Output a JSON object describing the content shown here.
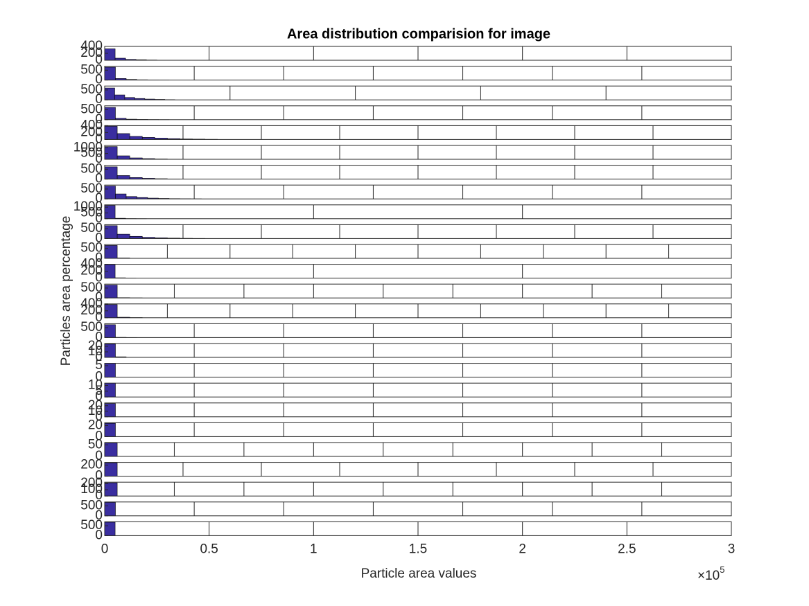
{
  "figure": {
    "title": "Area distribution comparision for image",
    "xlabel": "Particle area values",
    "ylabel": "Particles area percentage",
    "x_multiplier": "×10",
    "x_multiplier_exponent": "5"
  },
  "chart_data": [
    {
      "type": "histogram",
      "color": "#3a2ea0",
      "xlim": [
        0,
        3
      ],
      "xticks": [
        0,
        0.5,
        1,
        1.5,
        2,
        2.5,
        3
      ],
      "ylim": [
        0,
        400
      ],
      "yticks": [
        0,
        200,
        400
      ],
      "bins": [
        0,
        0.05,
        0.1,
        0.15,
        0.2,
        0.25,
        0.3
      ],
      "counts": [
        330,
        60,
        25,
        15,
        8,
        4
      ]
    },
    {
      "type": "histogram",
      "color": "#3a2ea0",
      "xlim": [
        0,
        3.5
      ],
      "xticks": [
        0,
        0.5,
        1,
        1.5,
        2,
        2.5,
        3,
        3.5
      ],
      "ylim": [
        0,
        700
      ],
      "yticks": [
        0,
        500
      ],
      "bins": [
        0,
        0.06,
        0.12,
        0.18,
        0.24,
        0.3,
        0.36
      ],
      "counts": [
        650,
        80,
        30,
        15,
        8,
        4
      ]
    },
    {
      "type": "histogram",
      "color": "#3a2ea0",
      "xlim": [
        0,
        2.5
      ],
      "xticks": [
        0,
        0.5,
        1,
        1.5,
        2,
        2.5
      ],
      "ylim": [
        0,
        700
      ],
      "yticks": [
        0,
        500
      ],
      "bins": [
        0,
        0.04,
        0.08,
        0.12,
        0.16,
        0.2,
        0.24,
        0.28
      ],
      "counts": [
        600,
        250,
        120,
        70,
        40,
        25,
        10
      ]
    },
    {
      "type": "histogram",
      "color": "#3a2ea0",
      "xlim": [
        0,
        3.5
      ],
      "xticks": [
        0,
        0.5,
        1,
        1.5,
        2,
        2.5,
        3,
        3.5
      ],
      "ylim": [
        0,
        700
      ],
      "yticks": [
        0,
        500
      ],
      "bins": [
        0,
        0.06,
        0.12,
        0.18,
        0.24,
        0.3,
        0.36
      ],
      "counts": [
        620,
        70,
        25,
        12,
        6,
        3
      ]
    },
    {
      "type": "histogram",
      "color": "#3a2ea0",
      "xlim": [
        0,
        4
      ],
      "xticks": [
        0,
        0.5,
        1,
        1.5,
        2,
        2.5,
        3,
        3.5,
        4
      ],
      "ylim": [
        0,
        400
      ],
      "yticks": [
        0,
        200,
        400
      ],
      "bins": [
        0,
        0.08,
        0.16,
        0.24,
        0.32,
        0.4,
        0.48,
        0.56,
        0.64,
        0.72
      ],
      "counts": [
        380,
        170,
        90,
        60,
        40,
        25,
        15,
        10,
        5
      ]
    },
    {
      "type": "histogram",
      "color": "#3a2ea0",
      "xlim": [
        0,
        4
      ],
      "xticks": [
        0,
        0.5,
        1,
        1.5,
        2,
        2.5,
        3,
        3.5,
        4
      ],
      "ylim": [
        0,
        1200
      ],
      "yticks": [
        0,
        500,
        1000
      ],
      "bins": [
        0,
        0.08,
        0.16,
        0.24,
        0.32,
        0.4,
        0.48
      ],
      "counts": [
        1100,
        300,
        120,
        60,
        30,
        15
      ]
    },
    {
      "type": "histogram",
      "color": "#3a2ea0",
      "xlim": [
        0,
        4
      ],
      "xticks": [
        0,
        0.5,
        1,
        1.5,
        2,
        2.5,
        3,
        3.5,
        4
      ],
      "ylim": [
        0,
        700
      ],
      "yticks": [
        0,
        500
      ],
      "bins": [
        0,
        0.08,
        0.16,
        0.24,
        0.32,
        0.4,
        0.48
      ],
      "counts": [
        620,
        180,
        80,
        40,
        20,
        10
      ]
    },
    {
      "type": "histogram",
      "color": "#3a2ea0",
      "xlim": [
        0,
        3.5
      ],
      "xticks": [
        0,
        0.5,
        1,
        1.5,
        2,
        2.5,
        3,
        3.5
      ],
      "ylim": [
        0,
        700
      ],
      "yticks": [
        0,
        500
      ],
      "bins": [
        0,
        0.06,
        0.12,
        0.18,
        0.24,
        0.3,
        0.36,
        0.42,
        0.48,
        0.54
      ],
      "counts": [
        650,
        250,
        120,
        70,
        40,
        25,
        15,
        8,
        4
      ]
    },
    {
      "type": "histogram",
      "color": "#3a2ea0",
      "xlim": [
        0,
        3
      ],
      "xticks": [
        0,
        1,
        2,
        3
      ],
      "ylim": [
        0,
        1200
      ],
      "yticks": [
        0,
        500,
        1000
      ],
      "bins": [
        0,
        0.05,
        0.1,
        0.15,
        0.2
      ],
      "counts": [
        1150,
        40,
        10,
        4
      ]
    },
    {
      "type": "histogram",
      "color": "#3a2ea0",
      "xlim": [
        0,
        4
      ],
      "xticks": [
        0,
        0.5,
        1,
        1.5,
        2,
        2.5,
        3,
        3.5,
        4
      ],
      "ylim": [
        0,
        700
      ],
      "yticks": [
        0,
        500
      ],
      "bins": [
        0,
        0.08,
        0.16,
        0.24,
        0.32,
        0.4,
        0.48,
        0.56,
        0.64
      ],
      "counts": [
        650,
        220,
        110,
        60,
        35,
        20,
        10,
        5
      ]
    },
    {
      "type": "histogram",
      "color": "#3a2ea0",
      "xlim": [
        0,
        5
      ],
      "xticks": [
        0,
        0.5,
        1,
        1.5,
        2,
        2.5,
        3,
        3.5,
        4,
        4.5,
        5
      ],
      "ylim": [
        0,
        700
      ],
      "yticks": [
        0,
        500
      ],
      "bins": [
        0,
        0.1,
        0.2,
        0.3
      ],
      "counts": [
        650,
        20,
        5
      ]
    },
    {
      "type": "histogram",
      "color": "#3a2ea0",
      "xlim": [
        0,
        3
      ],
      "xticks": [
        0,
        1,
        2,
        3
      ],
      "ylim": [
        0,
        400
      ],
      "yticks": [
        0,
        200,
        400
      ],
      "bins": [
        0,
        0.05,
        0.1,
        0.15
      ],
      "counts": [
        390,
        10,
        3
      ]
    },
    {
      "type": "histogram",
      "color": "#3a2ea0",
      "xlim": [
        0,
        4.5
      ],
      "xticks": [
        0,
        0.5,
        1,
        1.5,
        2,
        2.5,
        3,
        3.5,
        4,
        4.5
      ],
      "ylim": [
        0,
        700
      ],
      "yticks": [
        0,
        500
      ],
      "bins": [
        0,
        0.09,
        0.18,
        0.27
      ],
      "counts": [
        650,
        15,
        4
      ]
    },
    {
      "type": "histogram",
      "color": "#3a2ea0",
      "xlim": [
        0,
        5
      ],
      "xticks": [
        0,
        0.5,
        1,
        1.5,
        2,
        2.5,
        3,
        3.5,
        4,
        4.5,
        5
      ],
      "ylim": [
        0,
        400
      ],
      "yticks": [
        0,
        200,
        400
      ],
      "bins": [
        0,
        0.1,
        0.2,
        0.3
      ],
      "counts": [
        380,
        15,
        5
      ]
    },
    {
      "type": "histogram",
      "color": "#3a2ea0",
      "xlim": [
        0,
        3.5
      ],
      "xticks": [
        0,
        0.5,
        1,
        1.5,
        2,
        2.5,
        3,
        3.5
      ],
      "ylim": [
        0,
        700
      ],
      "yticks": [
        0,
        500
      ],
      "bins": [
        0,
        0.06,
        0.12,
        0.18
      ],
      "counts": [
        650,
        10,
        3
      ]
    },
    {
      "type": "histogram",
      "color": "#3a2ea0",
      "xlim": [
        0,
        3.5
      ],
      "xticks": [
        0,
        0.5,
        1,
        1.5,
        2,
        2.5,
        3,
        3.5
      ],
      "ylim": [
        0,
        25
      ],
      "yticks": [
        0,
        10,
        20
      ],
      "bins": [
        0,
        0.06,
        0.12
      ],
      "counts": [
        24,
        1
      ]
    },
    {
      "type": "histogram",
      "color": "#3a2ea0",
      "xlim": [
        0,
        3.5
      ],
      "xticks": [
        0,
        0.5,
        1,
        1.5,
        2,
        2.5,
        3,
        3.5
      ],
      "ylim": [
        0,
        6
      ],
      "yticks": [
        0,
        5
      ],
      "bins": [
        0,
        0.06
      ],
      "counts": [
        6
      ]
    },
    {
      "type": "histogram",
      "color": "#3a2ea0",
      "xlim": [
        0,
        3.5
      ],
      "xticks": [
        0,
        0.5,
        1,
        1.5,
        2,
        2.5,
        3,
        3.5
      ],
      "ylim": [
        0,
        12
      ],
      "yticks": [
        0,
        5,
        10
      ],
      "bins": [
        0,
        0.06
      ],
      "counts": [
        12
      ]
    },
    {
      "type": "histogram",
      "color": "#3a2ea0",
      "xlim": [
        0,
        3.5
      ],
      "xticks": [
        0,
        0.5,
        1,
        1.5,
        2,
        2.5,
        3,
        3.5
      ],
      "ylim": [
        0,
        25
      ],
      "yticks": [
        0,
        10,
        20
      ],
      "bins": [
        0,
        0.06
      ],
      "counts": [
        24
      ]
    },
    {
      "type": "histogram",
      "color": "#3a2ea0",
      "xlim": [
        0,
        3.5
      ],
      "xticks": [
        0,
        0.5,
        1,
        1.5,
        2,
        2.5,
        3,
        3.5
      ],
      "ylim": [
        0,
        25
      ],
      "yticks": [
        0,
        20
      ],
      "bins": [
        0,
        0.06
      ],
      "counts": [
        24
      ]
    },
    {
      "type": "histogram",
      "color": "#3a2ea0",
      "xlim": [
        0,
        4.5
      ],
      "xticks": [
        0,
        0.5,
        1,
        1.5,
        2,
        2.5,
        3,
        3.5,
        4,
        4.5
      ],
      "ylim": [
        0,
        60
      ],
      "yticks": [
        0,
        50
      ],
      "bins": [
        0,
        0.09
      ],
      "counts": [
        58
      ]
    },
    {
      "type": "histogram",
      "color": "#3a2ea0",
      "xlim": [
        0,
        4
      ],
      "xticks": [
        0,
        0.5,
        1,
        1.5,
        2,
        2.5,
        3,
        3.5,
        4
      ],
      "ylim": [
        0,
        250
      ],
      "yticks": [
        0,
        200
      ],
      "bins": [
        0,
        0.08
      ],
      "counts": [
        240
      ]
    },
    {
      "type": "histogram",
      "color": "#3a2ea0",
      "xlim": [
        0,
        4.5
      ],
      "xticks": [
        0,
        0.5,
        1,
        1.5,
        2,
        2.5,
        3,
        3.5,
        4,
        4.5
      ],
      "ylim": [
        0,
        220
      ],
      "yticks": [
        0,
        100,
        200
      ],
      "bins": [
        0,
        0.09
      ],
      "counts": [
        210
      ]
    },
    {
      "type": "histogram",
      "color": "#3a2ea0",
      "xlim": [
        0,
        3.5
      ],
      "xticks": [
        0,
        0.5,
        1,
        1.5,
        2,
        2.5,
        3,
        3.5
      ],
      "ylim": [
        0,
        700
      ],
      "yticks": [
        0,
        500
      ],
      "bins": [
        0,
        0.06
      ],
      "counts": [
        680
      ]
    },
    {
      "type": "histogram",
      "color": "#3a2ea0",
      "xlim": [
        0,
        3
      ],
      "xticks": [
        0,
        0.5,
        1,
        1.5,
        2,
        2.5,
        3
      ],
      "ylim": [
        0,
        700
      ],
      "yticks": [
        0,
        500
      ],
      "bins": [
        0,
        0.05
      ],
      "counts": [
        680
      ]
    }
  ]
}
